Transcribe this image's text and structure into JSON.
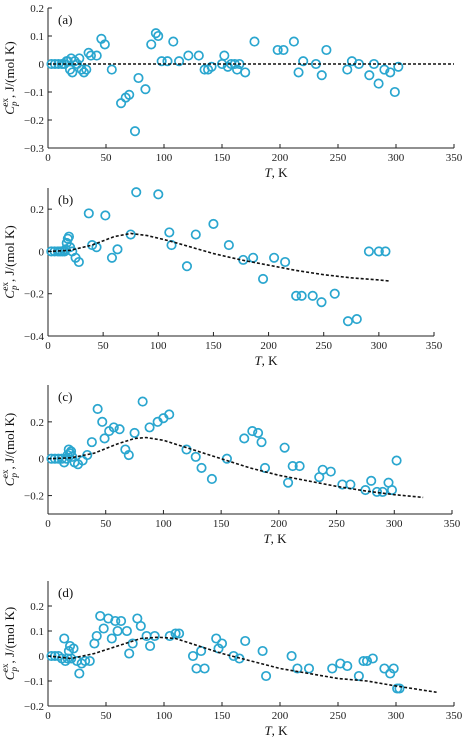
{
  "figure": {
    "axis_color": "#222222",
    "marker_color": "#2aa6cf",
    "fit_color": "#111111"
  },
  "chart_data": [
    {
      "type": "scatter",
      "panel_label": "(a)",
      "xlabel_var": "T",
      "xlabel_unit": ", K",
      "ylabel_var": "C",
      "ylabel_sub": "p",
      "ylabel_sup": "ex",
      "ylabel_unit": ", J/(mol K)",
      "xlim": [
        0,
        350
      ],
      "ylim": [
        -0.3,
        0.2
      ],
      "xticks": [
        0,
        50,
        100,
        150,
        200,
        250,
        300,
        350
      ],
      "yticks": [
        -0.3,
        -0.2,
        -0.1,
        0,
        0.1,
        0.2
      ],
      "ytick_labels": [
        "−0.3",
        "−0.2",
        "−0.1",
        "0",
        "0.1",
        "0.2"
      ],
      "grid": false,
      "series": [
        {
          "kind": "points",
          "x": [
            3,
            6,
            9,
            12,
            14,
            16,
            17,
            19,
            20,
            21,
            23,
            25,
            27,
            29,
            31,
            33,
            35,
            37,
            42,
            46,
            49,
            55,
            63,
            67,
            70,
            75,
            78,
            84,
            89,
            93,
            95,
            98,
            103,
            108,
            113,
            121,
            130,
            135,
            138,
            141,
            150,
            152,
            155,
            158,
            161,
            163,
            165,
            170,
            178,
            198,
            203,
            212,
            216,
            220,
            231,
            236,
            240,
            258,
            262,
            268,
            277,
            281,
            285,
            290,
            295,
            299,
            302
          ],
          "y": [
            0,
            0,
            0,
            0,
            0,
            0.01,
            0.01,
            -0.02,
            0.02,
            -0.03,
            0.01,
            0,
            0.02,
            -0.02,
            -0.03,
            -0.02,
            0.04,
            0.03,
            0.03,
            0.09,
            0.07,
            -0.02,
            -0.14,
            -0.12,
            -0.11,
            -0.24,
            -0.05,
            -0.09,
            0.07,
            0.11,
            0.1,
            0.01,
            0.01,
            0.08,
            0.01,
            0.03,
            0.03,
            -0.02,
            -0.02,
            -0.01,
            0,
            0.03,
            -0.01,
            0,
            0,
            -0.02,
            0,
            -0.03,
            0.08,
            0.05,
            0.05,
            0.08,
            -0.03,
            0.01,
            0,
            -0.04,
            0.05,
            -0.02,
            0.01,
            0,
            -0.04,
            0,
            -0.07,
            -0.02,
            -0.03,
            -0.1,
            -0.01
          ]
        },
        {
          "kind": "fit",
          "x": [
            0,
            350
          ],
          "y": [
            0,
            0
          ]
        }
      ]
    },
    {
      "type": "scatter",
      "panel_label": "(b)",
      "xlabel_var": "T",
      "xlabel_unit": ", K",
      "ylabel_var": "C",
      "ylabel_sub": "p",
      "ylabel_sup": "ex",
      "ylabel_unit": ", J/(mol K)",
      "xlim": [
        0,
        350
      ],
      "ylim": [
        -0.4,
        0.3
      ],
      "xticks": [
        0,
        50,
        100,
        150,
        200,
        250,
        300,
        350
      ],
      "yticks": [
        -0.4,
        -0.2,
        0,
        0.2
      ],
      "ytick_labels": [
        "−0.4",
        "−0.2",
        "0",
        "0.2"
      ],
      "grid": false,
      "series": [
        {
          "kind": "points",
          "x": [
            3,
            6,
            9,
            11,
            13,
            15,
            16,
            17,
            18,
            19,
            20,
            22,
            25,
            28,
            31,
            35,
            40,
            44,
            50,
            55,
            60,
            65,
            70,
            80,
            88,
            100,
            108,
            115,
            125,
            130,
            145,
            155,
            160,
            175,
            183,
            195,
            205,
            215,
            225,
            230,
            240,
            248,
            260,
            270,
            280,
            290,
            300,
            305
          ],
          "y": [
            0,
            0,
            0,
            0,
            0,
            0,
            0.01,
            0.04,
            0.06,
            0.07,
            0.02,
            0,
            -0.03,
            -0.05,
            -0.06,
            0,
            0.18,
            0.03,
            0.17,
            -0.03,
            0.01,
            0.08,
            0.28,
            0.27,
            0.09,
            0.03,
            -0.07,
            0.08,
            0.13,
            0.03,
            -0.04,
            -0.03,
            -0.13,
            -0.03,
            -0.05,
            -0.21,
            -0.21,
            -0.21,
            -0.24,
            -0.2,
            -0.33,
            -0.32,
            0,
            0,
            0,
            0,
            0,
            0
          ],
          "x_override": [
            3,
            6,
            9,
            11,
            13,
            15,
            16,
            17,
            18,
            19,
            20,
            22,
            25,
            28,
            37,
            40,
            44,
            52,
            58,
            63,
            75,
            80,
            100,
            110,
            112,
            126,
            134,
            150,
            164,
            177,
            186,
            195,
            205,
            215,
            225,
            230,
            240,
            248,
            260,
            272,
            280,
            291,
            300,
            306
          ],
          "y_override": [
            0,
            0,
            0,
            0,
            0,
            0,
            0.01,
            0.04,
            0.06,
            0.07,
            0.02,
            0,
            -0.03,
            -0.05,
            0.18,
            0.03,
            0.02,
            0.17,
            -0.03,
            0.01,
            0.08,
            0.28,
            0.27,
            0.09,
            0.03,
            -0.07,
            0.08,
            0.13,
            0.03,
            -0.04,
            -0.03,
            -0.13,
            -0.03,
            -0.05,
            -0.21,
            -0.21,
            -0.21,
            -0.24,
            -0.2,
            -0.33,
            -0.32,
            0,
            0,
            0
          ]
        },
        {
          "kind": "fit",
          "x": [
            0,
            20,
            40,
            60,
            75,
            90,
            110,
            130,
            150,
            175,
            200,
            225,
            250,
            275,
            300,
            310
          ],
          "y": [
            0,
            0.005,
            0.03,
            0.07,
            0.085,
            0.075,
            0.05,
            0.02,
            -0.01,
            -0.04,
            -0.065,
            -0.09,
            -0.11,
            -0.125,
            -0.135,
            -0.14
          ]
        }
      ]
    },
    {
      "type": "scatter",
      "panel_label": "(c)",
      "xlabel_var": "T",
      "xlabel_unit": ", K",
      "ylabel_var": "C",
      "ylabel_sub": "p",
      "ylabel_sup": "ex",
      "ylabel_unit": ", J/(mol K)",
      "xlim": [
        0,
        350
      ],
      "ylim": [
        -0.3,
        0.4
      ],
      "xticks": [
        0,
        50,
        100,
        150,
        200,
        250,
        300,
        350
      ],
      "yticks": [
        -0.2,
        0,
        0.2
      ],
      "ytick_labels": [
        "−0.2",
        "0",
        "0.2"
      ],
      "grid": false,
      "series": [
        {
          "kind": "points",
          "x": [
            3,
            6,
            9,
            12,
            14,
            16,
            17,
            18,
            19,
            20,
            21,
            23,
            26,
            30,
            34,
            38,
            43,
            47,
            49,
            53,
            57,
            62,
            67,
            70,
            75,
            82,
            88,
            95,
            100,
            105,
            120,
            128,
            133,
            142,
            155,
            170,
            177,
            182,
            185,
            188,
            205,
            208,
            212,
            218,
            235,
            238,
            245,
            255,
            262,
            275,
            280,
            285,
            290,
            295,
            298,
            302
          ],
          "y": [
            0,
            0,
            0,
            0,
            -0.02,
            0,
            0.02,
            0.05,
            0.03,
            0.04,
            0.01,
            -0.02,
            -0.03,
            -0.01,
            0.02,
            0.09,
            0.27,
            0.2,
            0.11,
            0.15,
            0.17,
            0.16,
            0.05,
            0.02,
            0.14,
            0.31,
            0.17,
            0.2,
            0.22,
            0.24,
            0.05,
            0.01,
            -0.05,
            -0.11,
            0,
            0.11,
            0.15,
            0.14,
            0.09,
            -0.05,
            0.06,
            -0.13,
            -0.04,
            -0.04,
            -0.1,
            -0.06,
            -0.07,
            -0.14,
            -0.14,
            -0.17,
            -0.12,
            -0.18,
            -0.18,
            -0.13,
            -0.17,
            -0.01
          ]
        },
        {
          "kind": "fit",
          "x": [
            0,
            20,
            40,
            60,
            75,
            85,
            100,
            120,
            150,
            175,
            200,
            225,
            250,
            275,
            300,
            325
          ],
          "y": [
            0,
            0.005,
            0.03,
            0.08,
            0.11,
            0.115,
            0.1,
            0.06,
            0,
            -0.05,
            -0.09,
            -0.12,
            -0.15,
            -0.175,
            -0.195,
            -0.21
          ]
        }
      ]
    },
    {
      "type": "scatter",
      "panel_label": "(d)",
      "xlabel_var": "T",
      "xlabel_unit": ", K",
      "ylabel_var": "C",
      "ylabel_sub": "p",
      "ylabel_sup": "ex",
      "ylabel_unit": ", J/(mol K)",
      "xlim": [
        0,
        350
      ],
      "ylim": [
        -0.2,
        0.3
      ],
      "xticks": [
        0,
        50,
        100,
        150,
        200,
        250,
        300,
        350
      ],
      "yticks": [
        -0.2,
        -0.1,
        0,
        0.1,
        0.2
      ],
      "ytick_labels": [
        "−0.2",
        "−0.1",
        "0",
        "0.1",
        "0.2"
      ],
      "grid": false,
      "series": [
        {
          "kind": "points",
          "x": [
            3,
            6,
            9,
            12,
            14,
            15,
            17,
            18,
            19,
            20,
            22,
            25,
            27,
            29,
            32,
            36,
            40,
            42,
            45,
            48,
            52,
            55,
            58,
            60,
            63,
            68,
            70,
            73,
            77,
            80,
            85,
            88,
            92,
            105,
            110,
            113,
            125,
            128,
            132,
            135,
            145,
            147,
            150,
            160,
            165,
            170,
            185,
            188,
            210,
            215,
            225,
            245,
            252,
            258,
            268,
            272,
            275,
            280,
            290,
            295,
            298,
            301,
            303
          ],
          "y": [
            0,
            0,
            0,
            -0.01,
            0.07,
            -0.02,
            -0.01,
            0.02,
            0.04,
            -0.01,
            0.03,
            -0.02,
            -0.07,
            -0.03,
            -0.02,
            -0.02,
            0.05,
            0.08,
            0.16,
            0.11,
            0.15,
            0.07,
            0.14,
            0.1,
            0.14,
            0.1,
            0.01,
            0.05,
            0.15,
            0.12,
            0.08,
            0.04,
            0.08,
            0.08,
            0.09,
            0.09,
            0,
            -0.05,
            0.02,
            -0.05,
            0.07,
            0.03,
            0.05,
            0,
            -0.01,
            0.06,
            0.02,
            -0.08,
            0,
            -0.05,
            -0.05,
            -0.05,
            -0.03,
            -0.04,
            -0.08,
            -0.02,
            -0.02,
            -0.01,
            -0.05,
            -0.07,
            -0.05,
            -0.13,
            -0.13
          ]
        },
        {
          "kind": "fit",
          "x": [
            0,
            20,
            40,
            60,
            80,
            95,
            110,
            130,
            150,
            175,
            200,
            225,
            250,
            275,
            300,
            335
          ],
          "y": [
            0,
            -0.01,
            0.01,
            0.04,
            0.07,
            0.075,
            0.07,
            0.04,
            0.01,
            -0.02,
            -0.05,
            -0.07,
            -0.09,
            -0.1,
            -0.12,
            -0.145
          ]
        }
      ]
    }
  ]
}
